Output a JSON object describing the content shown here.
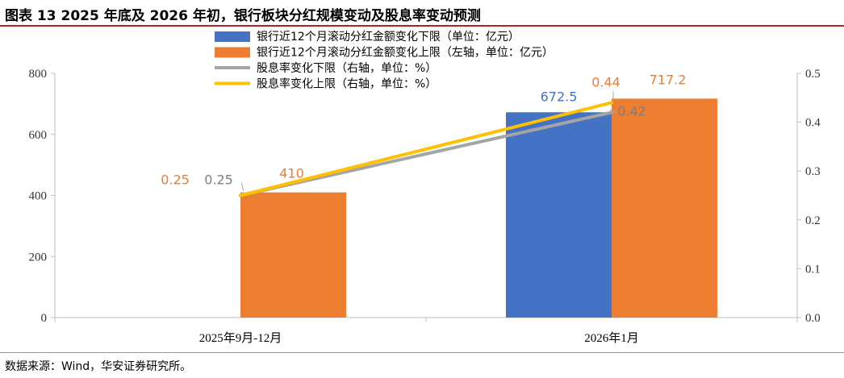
{
  "title": "图表 13 2025 年底及 2026 年初，银行板块分红规模变动及股息率变动预测",
  "source": "数据来源：Wind，华安证券研究所。",
  "chart_data": {
    "type": "bar",
    "categories": [
      "2025年9月-12月",
      "2026年1月"
    ],
    "left_axis": {
      "ylim": [
        0,
        800
      ],
      "ticks": [
        "0",
        "200",
        "400",
        "600",
        "800"
      ]
    },
    "right_axis": {
      "ylim": [
        0,
        0.5
      ],
      "ticks": [
        "0.0",
        "0.1",
        "0.2",
        "0.3",
        "0.4",
        "0.5"
      ]
    },
    "legend_position": "top-center",
    "series": [
      {
        "name": "银行近12个月滚动分红金额变化下限（单位：亿元）",
        "kind": "bar",
        "axis": "left",
        "color": "#4472C4",
        "values": [
          null,
          672.5
        ],
        "labels": [
          "",
          "672.5"
        ]
      },
      {
        "name": "银行近12个月滚动分红金额变化上限（左轴，单位：亿元）",
        "kind": "bar",
        "axis": "left",
        "color": "#ED7D31",
        "values": [
          410,
          717.2
        ],
        "labels": [
          "410",
          "717.2"
        ]
      },
      {
        "name": "股息率变化下限（右轴，单位：%）",
        "kind": "line",
        "axis": "right",
        "color": "#A5A5A5",
        "values": [
          0.25,
          0.42
        ],
        "labels": [
          "0.25",
          "0.42"
        ]
      },
      {
        "name": "股息率变化上限（右轴，单位：%）",
        "kind": "line",
        "axis": "right",
        "color": "#FFC000",
        "values": [
          0.25,
          0.44
        ],
        "labels": [
          "0.25",
          "0.44"
        ]
      }
    ]
  }
}
